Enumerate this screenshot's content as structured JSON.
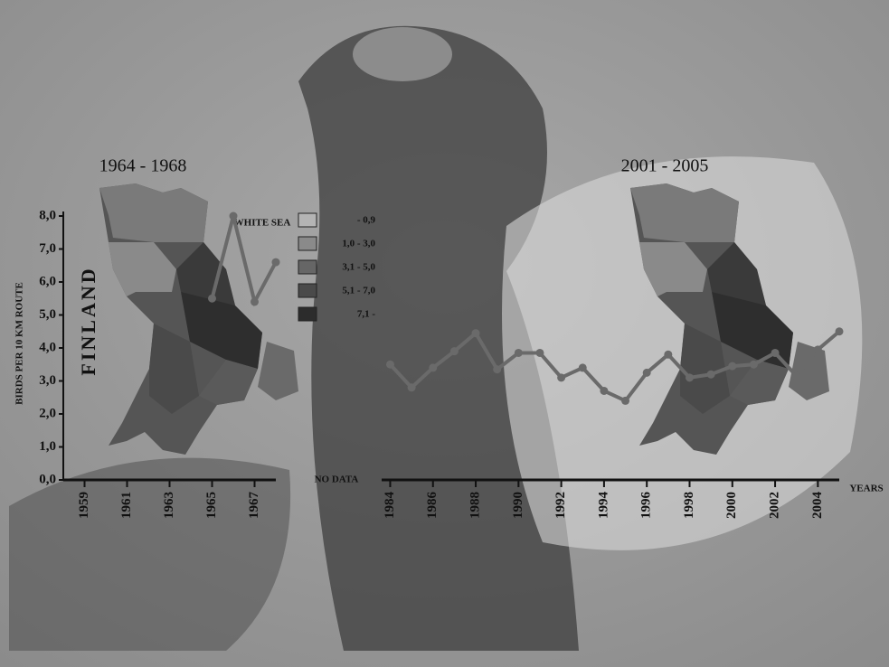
{
  "chart_data": {
    "type": "line",
    "titles": [
      "1964 - 1968",
      "2001 - 2005"
    ],
    "y_label": "BIRDS PER 10 KM ROUTE",
    "x_label": "YEARS",
    "gap_note": "NO DATA",
    "map_labels": [
      "FINLAND",
      "WHITE SEA"
    ],
    "ylim": [
      0,
      8
    ],
    "yticks": [
      {
        "value": 0,
        "label": "0,0"
      },
      {
        "value": 1,
        "label": "1,0"
      },
      {
        "value": 2,
        "label": "2,0"
      },
      {
        "value": 3,
        "label": "3,0"
      },
      {
        "value": 4,
        "label": "4,0"
      },
      {
        "value": 5,
        "label": "5,0"
      },
      {
        "value": 6,
        "label": "6,0"
      },
      {
        "value": 7,
        "label": "7,0"
      },
      {
        "value": 8,
        "label": "8,0"
      }
    ],
    "x_axes": [
      {
        "xlim": [
          1958,
          1968
        ],
        "xticks": [
          1959,
          1961,
          1963,
          1965,
          1967
        ]
      },
      {
        "xlim": [
          1983.6,
          2005
        ],
        "xticks": [
          1984,
          1986,
          1988,
          1990,
          1992,
          1994,
          1996,
          1998,
          2000,
          2002,
          2004
        ]
      }
    ],
    "series": [
      {
        "axis": 0,
        "color": "#6a6a6a",
        "x": [
          1965,
          1966,
          1967,
          1968
        ],
        "values": [
          5.5,
          8.0,
          5.4,
          6.6
        ]
      },
      {
        "axis": 1,
        "color": "#6a6a6a",
        "x": [
          1984,
          1985,
          1986,
          1987,
          1988,
          1989,
          1990,
          1991,
          1992,
          1993,
          1994,
          1995,
          1996,
          1997,
          1998,
          1999,
          2000,
          2001,
          2002,
          2003,
          2004,
          2005
        ],
        "values": [
          3.5,
          2.8,
          3.4,
          3.9,
          4.45,
          3.35,
          3.85,
          3.85,
          3.1,
          3.4,
          2.7,
          2.4,
          3.25,
          3.8,
          3.1,
          3.2,
          3.45,
          3.5,
          3.85,
          3.15,
          3.95,
          4.5
        ]
      }
    ],
    "legend": [
      {
        "label": "- 0,9",
        "color": "#b4b4b4"
      },
      {
        "label": "1,0 - 3,0",
        "color": "#8a8a8a"
      },
      {
        "label": "3,1 - 5,0",
        "color": "#666666"
      },
      {
        "label": "5,1 - 7,0",
        "color": "#4a4a4a"
      },
      {
        "label": "7,1 -",
        "color": "#2c2c2c"
      }
    ]
  }
}
